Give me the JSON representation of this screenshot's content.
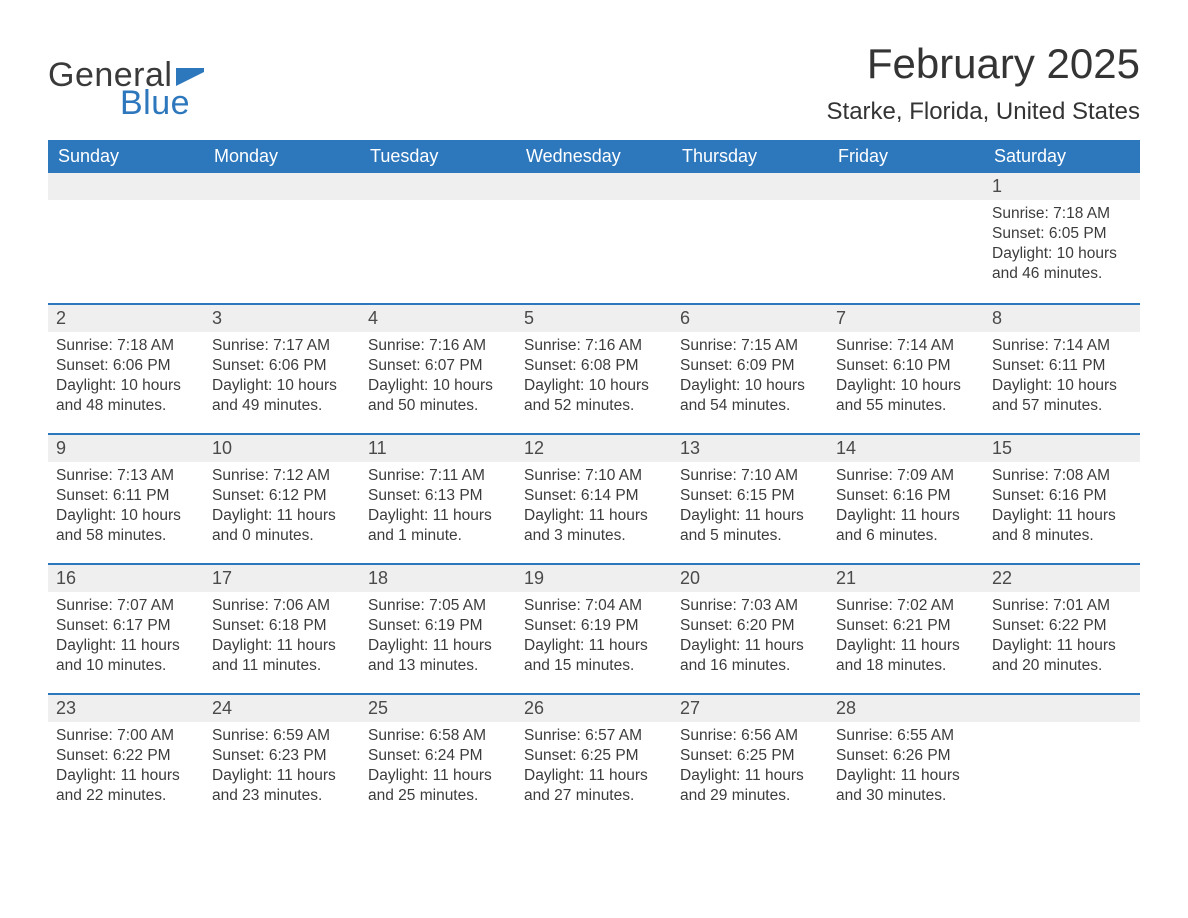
{
  "logo": {
    "text_general": "General",
    "text_blue": "Blue",
    "flag_color": "#2d77bd"
  },
  "title": "February 2025",
  "location": "Starke, Florida, United States",
  "colors": {
    "header_bg": "#2d77bd",
    "header_text": "#ffffff",
    "daynum_bg": "#efefef",
    "row_border": "#2d77bd",
    "body_text": "#3c3c3c",
    "title_text": "#343434"
  },
  "weekdays": [
    "Sunday",
    "Monday",
    "Tuesday",
    "Wednesday",
    "Thursday",
    "Friday",
    "Saturday"
  ],
  "weeks": [
    [
      null,
      null,
      null,
      null,
      null,
      null,
      {
        "day": "1",
        "sunrise": "Sunrise: 7:18 AM",
        "sunset": "Sunset: 6:05 PM",
        "daylight": "Daylight: 10 hours and 46 minutes."
      }
    ],
    [
      {
        "day": "2",
        "sunrise": "Sunrise: 7:18 AM",
        "sunset": "Sunset: 6:06 PM",
        "daylight": "Daylight: 10 hours and 48 minutes."
      },
      {
        "day": "3",
        "sunrise": "Sunrise: 7:17 AM",
        "sunset": "Sunset: 6:06 PM",
        "daylight": "Daylight: 10 hours and 49 minutes."
      },
      {
        "day": "4",
        "sunrise": "Sunrise: 7:16 AM",
        "sunset": "Sunset: 6:07 PM",
        "daylight": "Daylight: 10 hours and 50 minutes."
      },
      {
        "day": "5",
        "sunrise": "Sunrise: 7:16 AM",
        "sunset": "Sunset: 6:08 PM",
        "daylight": "Daylight: 10 hours and 52 minutes."
      },
      {
        "day": "6",
        "sunrise": "Sunrise: 7:15 AM",
        "sunset": "Sunset: 6:09 PM",
        "daylight": "Daylight: 10 hours and 54 minutes."
      },
      {
        "day": "7",
        "sunrise": "Sunrise: 7:14 AM",
        "sunset": "Sunset: 6:10 PM",
        "daylight": "Daylight: 10 hours and 55 minutes."
      },
      {
        "day": "8",
        "sunrise": "Sunrise: 7:14 AM",
        "sunset": "Sunset: 6:11 PM",
        "daylight": "Daylight: 10 hours and 57 minutes."
      }
    ],
    [
      {
        "day": "9",
        "sunrise": "Sunrise: 7:13 AM",
        "sunset": "Sunset: 6:11 PM",
        "daylight": "Daylight: 10 hours and 58 minutes."
      },
      {
        "day": "10",
        "sunrise": "Sunrise: 7:12 AM",
        "sunset": "Sunset: 6:12 PM",
        "daylight": "Daylight: 11 hours and 0 minutes."
      },
      {
        "day": "11",
        "sunrise": "Sunrise: 7:11 AM",
        "sunset": "Sunset: 6:13 PM",
        "daylight": "Daylight: 11 hours and 1 minute."
      },
      {
        "day": "12",
        "sunrise": "Sunrise: 7:10 AM",
        "sunset": "Sunset: 6:14 PM",
        "daylight": "Daylight: 11 hours and 3 minutes."
      },
      {
        "day": "13",
        "sunrise": "Sunrise: 7:10 AM",
        "sunset": "Sunset: 6:15 PM",
        "daylight": "Daylight: 11 hours and 5 minutes."
      },
      {
        "day": "14",
        "sunrise": "Sunrise: 7:09 AM",
        "sunset": "Sunset: 6:16 PM",
        "daylight": "Daylight: 11 hours and 6 minutes."
      },
      {
        "day": "15",
        "sunrise": "Sunrise: 7:08 AM",
        "sunset": "Sunset: 6:16 PM",
        "daylight": "Daylight: 11 hours and 8 minutes."
      }
    ],
    [
      {
        "day": "16",
        "sunrise": "Sunrise: 7:07 AM",
        "sunset": "Sunset: 6:17 PM",
        "daylight": "Daylight: 11 hours and 10 minutes."
      },
      {
        "day": "17",
        "sunrise": "Sunrise: 7:06 AM",
        "sunset": "Sunset: 6:18 PM",
        "daylight": "Daylight: 11 hours and 11 minutes."
      },
      {
        "day": "18",
        "sunrise": "Sunrise: 7:05 AM",
        "sunset": "Sunset: 6:19 PM",
        "daylight": "Daylight: 11 hours and 13 minutes."
      },
      {
        "day": "19",
        "sunrise": "Sunrise: 7:04 AM",
        "sunset": "Sunset: 6:19 PM",
        "daylight": "Daylight: 11 hours and 15 minutes."
      },
      {
        "day": "20",
        "sunrise": "Sunrise: 7:03 AM",
        "sunset": "Sunset: 6:20 PM",
        "daylight": "Daylight: 11 hours and 16 minutes."
      },
      {
        "day": "21",
        "sunrise": "Sunrise: 7:02 AM",
        "sunset": "Sunset: 6:21 PM",
        "daylight": "Daylight: 11 hours and 18 minutes."
      },
      {
        "day": "22",
        "sunrise": "Sunrise: 7:01 AM",
        "sunset": "Sunset: 6:22 PM",
        "daylight": "Daylight: 11 hours and 20 minutes."
      }
    ],
    [
      {
        "day": "23",
        "sunrise": "Sunrise: 7:00 AM",
        "sunset": "Sunset: 6:22 PM",
        "daylight": "Daylight: 11 hours and 22 minutes."
      },
      {
        "day": "24",
        "sunrise": "Sunrise: 6:59 AM",
        "sunset": "Sunset: 6:23 PM",
        "daylight": "Daylight: 11 hours and 23 minutes."
      },
      {
        "day": "25",
        "sunrise": "Sunrise: 6:58 AM",
        "sunset": "Sunset: 6:24 PM",
        "daylight": "Daylight: 11 hours and 25 minutes."
      },
      {
        "day": "26",
        "sunrise": "Sunrise: 6:57 AM",
        "sunset": "Sunset: 6:25 PM",
        "daylight": "Daylight: 11 hours and 27 minutes."
      },
      {
        "day": "27",
        "sunrise": "Sunrise: 6:56 AM",
        "sunset": "Sunset: 6:25 PM",
        "daylight": "Daylight: 11 hours and 29 minutes."
      },
      {
        "day": "28",
        "sunrise": "Sunrise: 6:55 AM",
        "sunset": "Sunset: 6:26 PM",
        "daylight": "Daylight: 11 hours and 30 minutes."
      },
      null
    ]
  ]
}
